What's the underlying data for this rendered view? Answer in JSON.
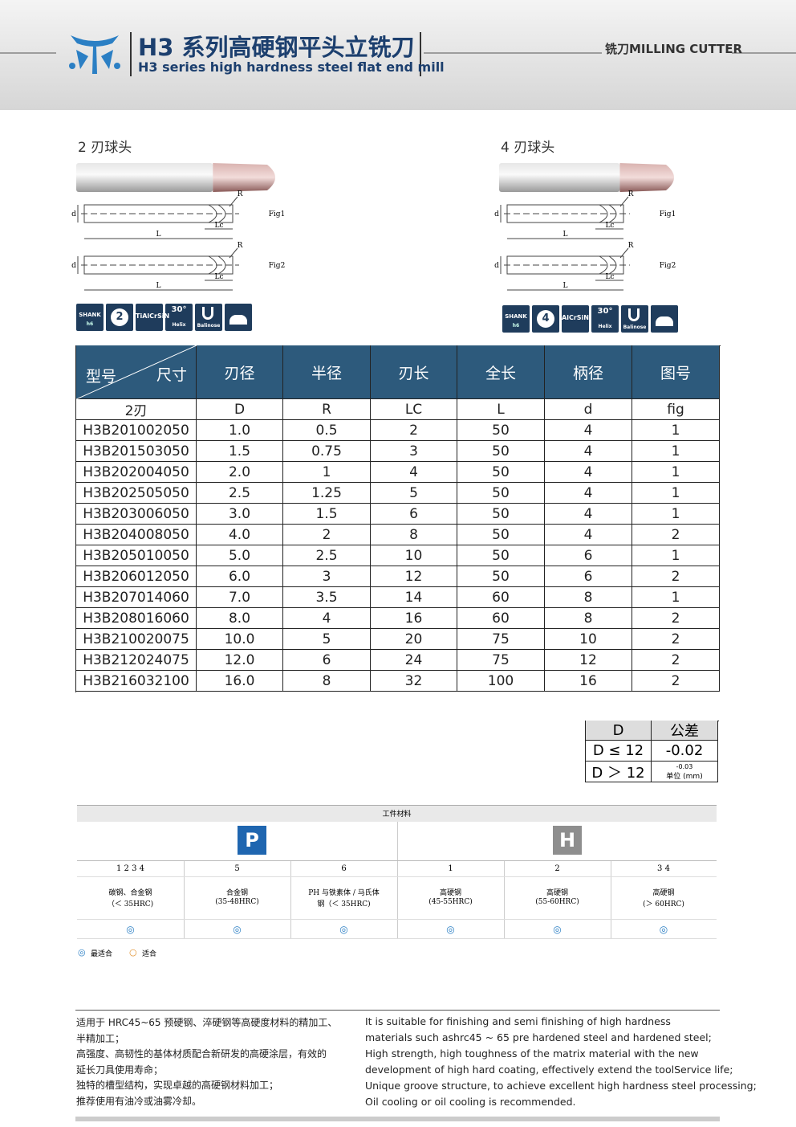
{
  "header": {
    "title": "H3 系列高硬钢平头立铣刀",
    "subtitle": "H3 series high hardness steel flat end mill",
    "category": "铣刀MILLING CUTTER"
  },
  "products": [
    {
      "label": "2 刃球头",
      "drawing": {
        "fig1": "Fig1",
        "fig2": "Fig2",
        "L": "L",
        "Lc": "Lc",
        "d": "d",
        "R": "R"
      },
      "icons": {
        "shank": "SHANK",
        "tolerance": "h6",
        "flutes": "2",
        "coating": "TiAlCrSiN",
        "angle": "30°",
        "helix": "Helix",
        "shape": "Balinose"
      }
    },
    {
      "label": "4 刃球头",
      "drawing": {
        "fig1": "Fig1",
        "fig2": "Fig2",
        "L": "L",
        "Lc": "Lc",
        "d": "d",
        "R": "R"
      },
      "icons": {
        "shank": "SHANK",
        "tolerance": "h6",
        "flutes": "4",
        "coating": "AlCrSiN",
        "angle": "30°",
        "helix": "Helix",
        "shape": "Balinose"
      }
    }
  ],
  "table": {
    "corner": [
      "型号",
      "尺寸"
    ],
    "headers": [
      "刃径",
      "半径",
      "刃长",
      "全长",
      "柄径",
      "图号"
    ],
    "subheader": [
      "2刃",
      "D",
      "R",
      "LC",
      "L",
      "d",
      "fig"
    ],
    "rows": [
      [
        "H3B201002050",
        "1.0",
        "0.5",
        "2",
        "50",
        "4",
        "1"
      ],
      [
        "H3B201503050",
        "1.5",
        "0.75",
        "3",
        "50",
        "4",
        "1"
      ],
      [
        "H3B202004050",
        "2.0",
        "1",
        "4",
        "50",
        "4",
        "1"
      ],
      [
        "H3B202505050",
        "2.5",
        "1.25",
        "5",
        "50",
        "4",
        "1"
      ],
      [
        "H3B203006050",
        "3.0",
        "1.5",
        "6",
        "50",
        "4",
        "1"
      ],
      [
        "H3B204008050",
        "4.0",
        "2",
        "8",
        "50",
        "4",
        "2"
      ],
      [
        "H3B205010050",
        "5.0",
        "2.5",
        "10",
        "50",
        "6",
        "1"
      ],
      [
        "H3B206012050",
        "6.0",
        "3",
        "12",
        "50",
        "6",
        "2"
      ],
      [
        "H3B207014060",
        "7.0",
        "3.5",
        "14",
        "60",
        "8",
        "1"
      ],
      [
        "H3B208016060",
        "8.0",
        "4",
        "16",
        "60",
        "8",
        "2"
      ],
      [
        "H3B210020075",
        "10.0",
        "5",
        "20",
        "75",
        "10",
        "2"
      ],
      [
        "H3B212024075",
        "12.0",
        "6",
        "24",
        "75",
        "12",
        "2"
      ],
      [
        "H3B216032100",
        "16.0",
        "8",
        "32",
        "100",
        "16",
        "2"
      ]
    ]
  },
  "tolerance": {
    "headers": [
      "D",
      "公差"
    ],
    "rows": [
      [
        "D ≤ 12",
        "-0.02"
      ],
      [
        "D ＞ 12",
        "-0.03"
      ]
    ],
    "unit": "单位 (mm)"
  },
  "materials": {
    "title": "工件材料",
    "groups": [
      "P",
      "H"
    ],
    "columns": [
      {
        "grade": "1 2 3 4",
        "desc": [
          "碳钢、合金钢",
          "（＜ 35HRC)"
        ],
        "mark": "◎"
      },
      {
        "grade": "5",
        "desc": [
          "合金钢",
          "(35-48HRC)"
        ],
        "mark": "◎"
      },
      {
        "grade": "6",
        "desc": [
          "PH 与铁素体 / 马氏体",
          "钢（＜ 35HRC)"
        ],
        "mark": "◎"
      },
      {
        "grade": "1",
        "desc": [
          "高硬钢",
          "(45-55HRC)"
        ],
        "mark": "◎"
      },
      {
        "grade": "2",
        "desc": [
          "高硬钢",
          "(55-60HRC)"
        ],
        "mark": "◎"
      },
      {
        "grade": "3 4",
        "desc": [
          "高硬钢",
          "(＞ 60HRC)"
        ],
        "mark": "◎"
      }
    ],
    "legend": [
      {
        "symbol": "◎",
        "label": "最适合"
      },
      {
        "symbol": "○",
        "label": "适合"
      }
    ]
  },
  "notes": {
    "zh": [
      "适用于 HRC45~65 预硬钢、淬硬钢等高硬度材料的精加工、",
      "半精加工；",
      "高强度、高韧性的基体材质配合新研发的高硬涂层，有效的",
      "延长刀具使用寿命；",
      "独特的槽型结构，实现卓越的高硬钢材料加工；",
      "推荐使用有油冷或油雾冷却。"
    ],
    "en": [
      "It is suitable for finishing and semi finishing of high hardness",
      " materials such ashrc45 ~ 65 pre hardened steel and hardened steel;",
      "High strength, high toughness of the matrix material with the new",
      "development of high hard coating, effectively extend the toolService life;",
      "Unique groove structure, to achieve excellent high hardness steel processing;",
      "Oil cooling or oil cooling is recommended."
    ]
  }
}
